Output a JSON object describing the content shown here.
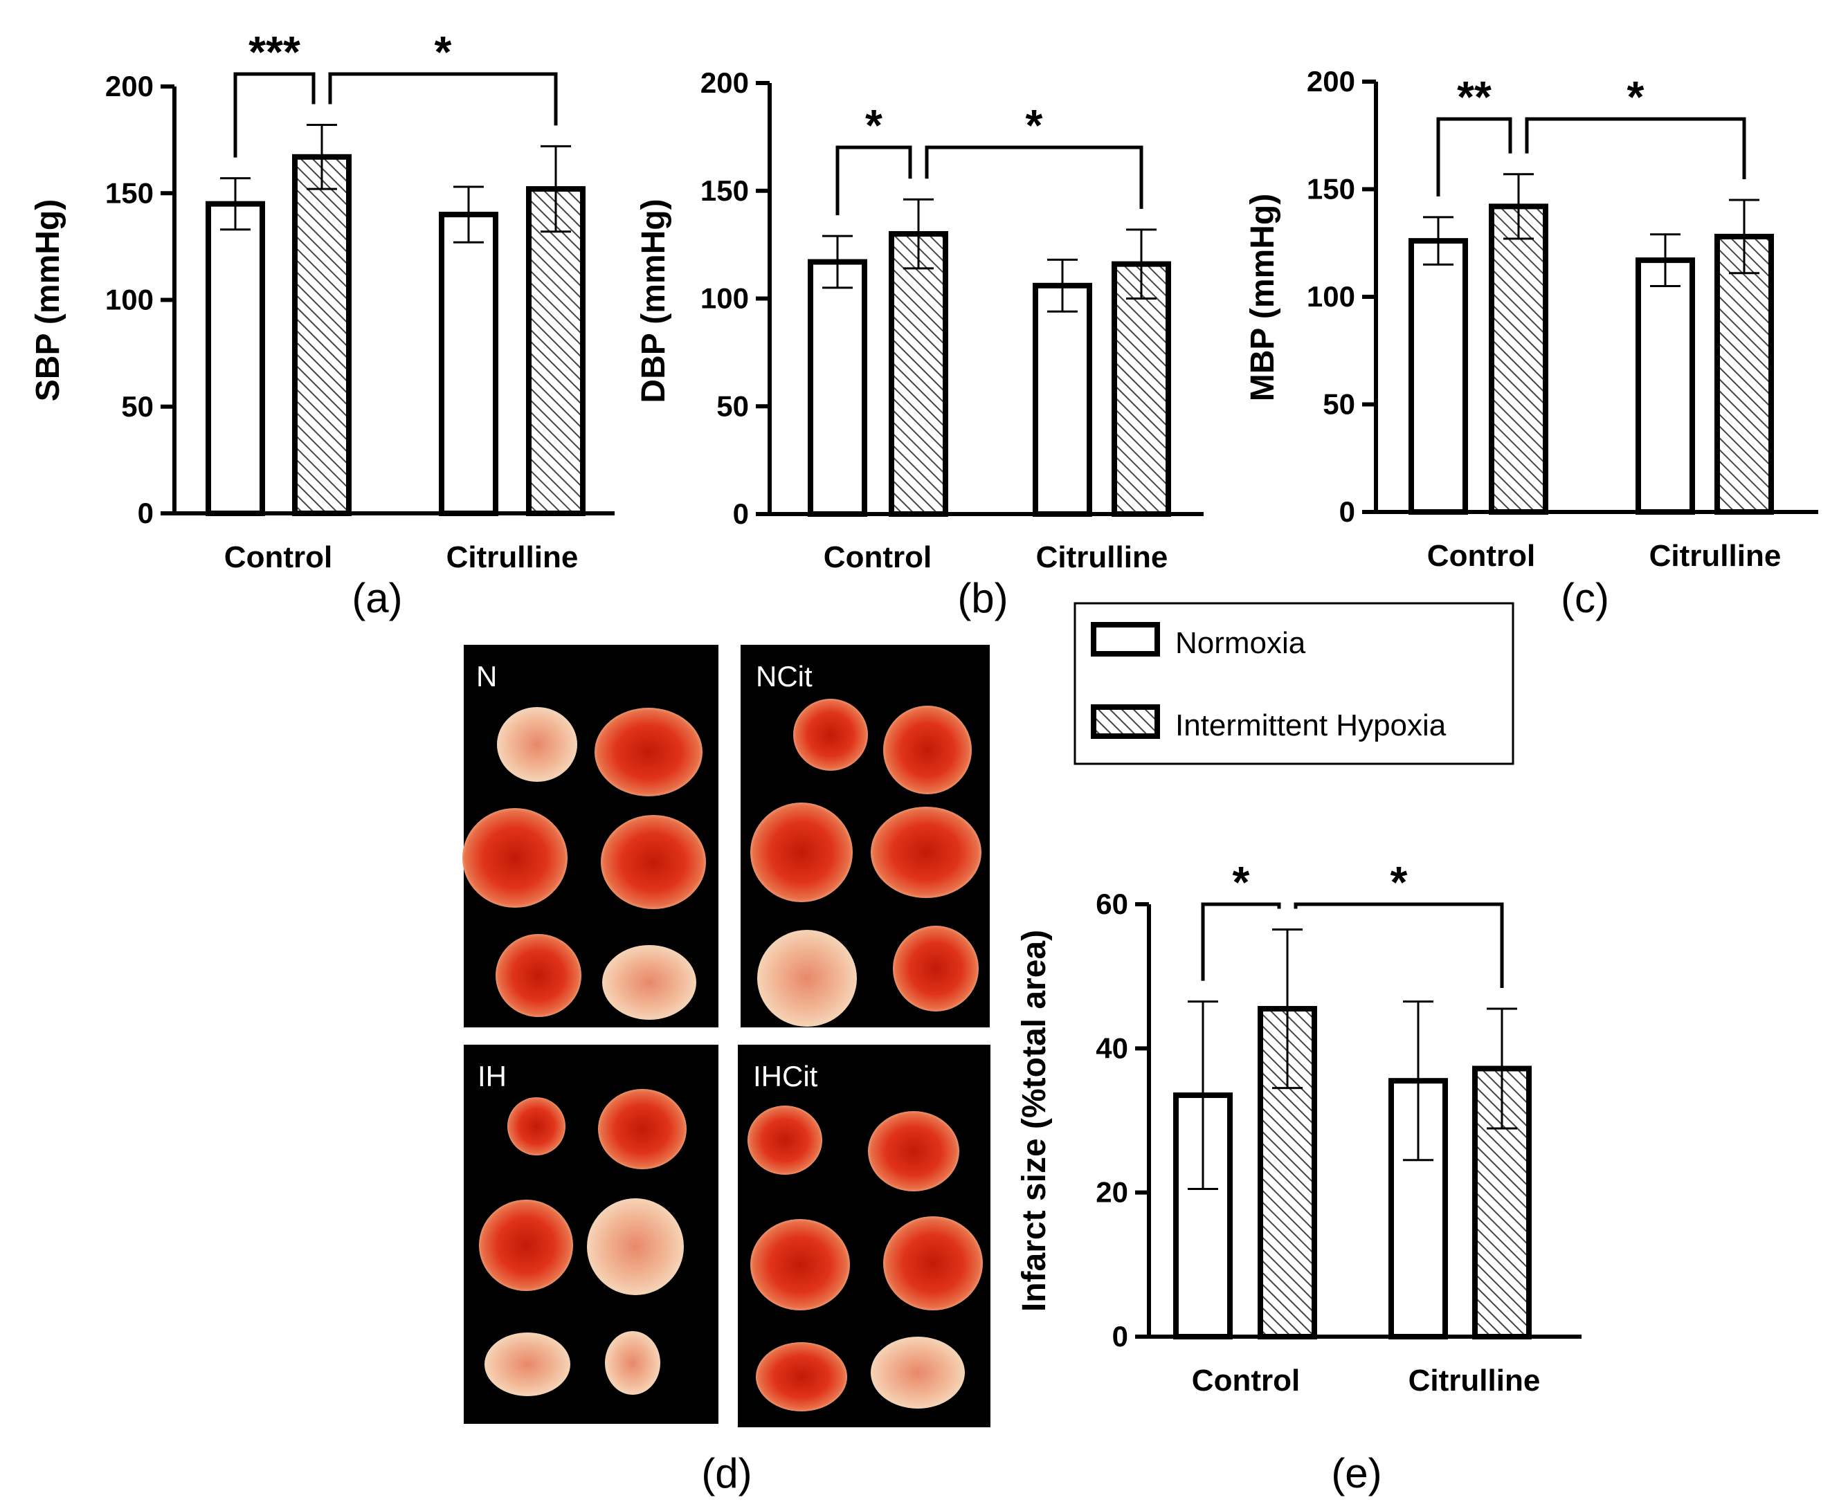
{
  "legend": {
    "items": [
      {
        "label": "Normoxia",
        "pattern": "open"
      },
      {
        "label": "Intermittent Hypoxia",
        "pattern": "hatched"
      }
    ]
  },
  "chart_data": [
    {
      "id": "a",
      "type": "bar",
      "panel_label": "(a)",
      "ylabel": "SBP (mmHg)",
      "ylim": [
        0,
        200
      ],
      "yticks": [
        0,
        50,
        100,
        150,
        200
      ],
      "categories": [
        "Control",
        "Citrulline"
      ],
      "series": [
        {
          "name": "Normoxia",
          "values": [
            145,
            140
          ],
          "errors": [
            12,
            13
          ]
        },
        {
          "name": "Intermittent Hypoxia",
          "values": [
            167,
            152
          ],
          "errors": [
            15,
            20
          ]
        }
      ],
      "significance": [
        {
          "from": [
            0,
            0
          ],
          "to": [
            0,
            1
          ],
          "label": "***"
        },
        {
          "from": [
            0,
            1
          ],
          "to": [
            1,
            1
          ],
          "label": "*"
        }
      ]
    },
    {
      "id": "b",
      "type": "bar",
      "panel_label": "(b)",
      "ylabel": "DBP (mmHg)",
      "ylim": [
        0,
        200
      ],
      "yticks": [
        0,
        50,
        100,
        150,
        200
      ],
      "categories": [
        "Control",
        "Citrulline"
      ],
      "series": [
        {
          "name": "Normoxia",
          "values": [
            117,
            106
          ],
          "errors": [
            12,
            12
          ]
        },
        {
          "name": "Intermittent Hypoxia",
          "values": [
            130,
            116
          ],
          "errors": [
            16,
            16
          ]
        }
      ],
      "significance": [
        {
          "from": [
            0,
            0
          ],
          "to": [
            0,
            1
          ],
          "label": "*"
        },
        {
          "from": [
            0,
            1
          ],
          "to": [
            1,
            1
          ],
          "label": "*"
        }
      ]
    },
    {
      "id": "c",
      "type": "bar",
      "panel_label": "(c)",
      "ylabel": "MBP (mmHg)",
      "ylim": [
        0,
        200
      ],
      "yticks": [
        0,
        50,
        100,
        150,
        200
      ],
      "categories": [
        "Control",
        "Citrulline"
      ],
      "series": [
        {
          "name": "Normoxia",
          "values": [
            126,
            117
          ],
          "errors": [
            11,
            12
          ]
        },
        {
          "name": "Intermittent Hypoxia",
          "values": [
            142,
            128
          ],
          "errors": [
            15,
            17
          ]
        }
      ],
      "significance": [
        {
          "from": [
            0,
            0
          ],
          "to": [
            0,
            1
          ],
          "label": "**"
        },
        {
          "from": [
            0,
            1
          ],
          "to": [
            1,
            1
          ],
          "label": "*"
        }
      ]
    },
    {
      "id": "e",
      "type": "bar",
      "panel_label": "(e)",
      "ylabel": "Infarct size (%total area)",
      "ylim": [
        0,
        60
      ],
      "yticks": [
        0,
        20,
        40,
        60
      ],
      "categories": [
        "Control",
        "Citrulline"
      ],
      "series": [
        {
          "name": "Normoxia",
          "values": [
            33.5,
            35.5
          ],
          "errors": [
            13,
            11
          ]
        },
        {
          "name": "Intermittent Hypoxia",
          "values": [
            45.5,
            37.2
          ],
          "errors": [
            11,
            8.3
          ]
        }
      ],
      "significance": [
        {
          "from": [
            0,
            0
          ],
          "to": [
            0,
            1
          ],
          "label": "*"
        },
        {
          "from": [
            0,
            1
          ],
          "to": [
            1,
            1
          ],
          "label": "*"
        }
      ]
    }
  ],
  "photos": {
    "panel_label": "(d)",
    "groups": [
      "N",
      "NCit",
      "IH",
      "IHCit"
    ]
  }
}
